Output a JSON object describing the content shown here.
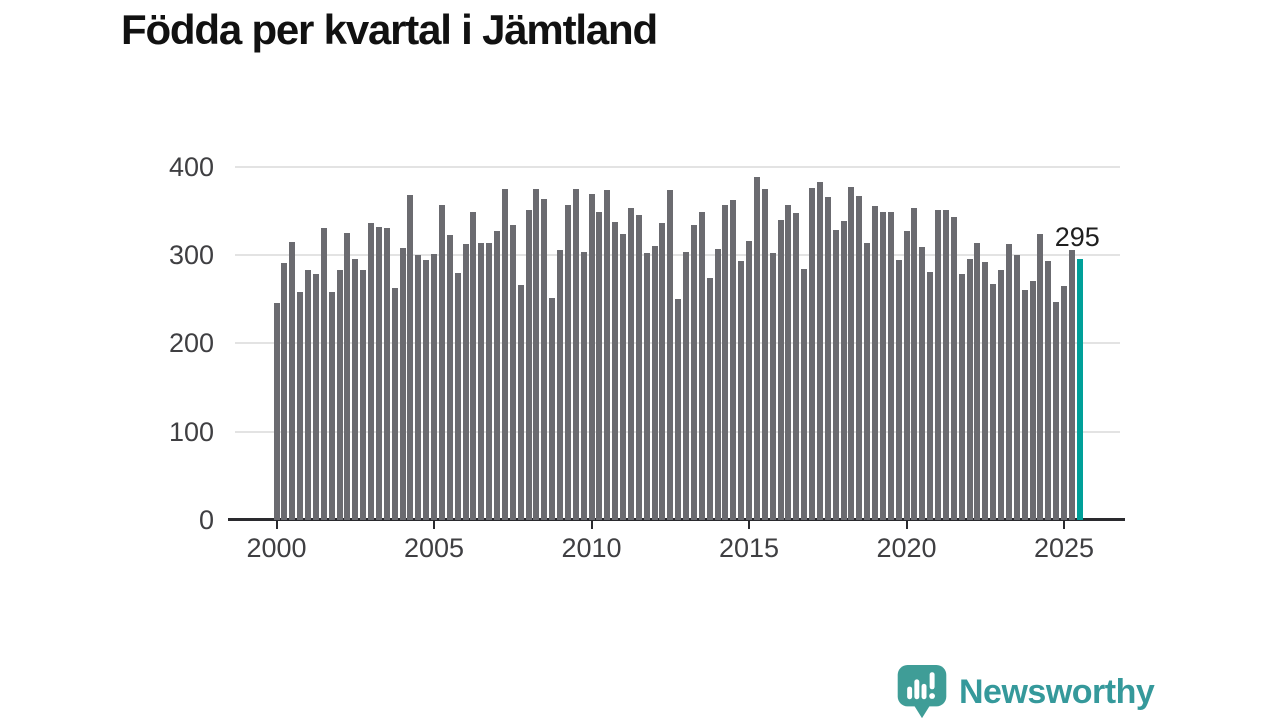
{
  "header": {
    "title": "Födda per kvartal i Jämtland"
  },
  "chart_data": {
    "type": "bar",
    "title": "Födda per kvartal i Jämtland",
    "xlabel": "",
    "ylabel": "",
    "x_start": "2000 Q1",
    "x_end": "2025 Q3",
    "frequency": "quarterly",
    "values": [
      245,
      291,
      315,
      258,
      283,
      278,
      330,
      258,
      283,
      325,
      295,
      283,
      336,
      332,
      330,
      263,
      308,
      368,
      300,
      294,
      301,
      356,
      323,
      279,
      312,
      349,
      314,
      314,
      327,
      375,
      334,
      266,
      351,
      375,
      363,
      251,
      305,
      357,
      374,
      303,
      369,
      348,
      373,
      337,
      324,
      353,
      345,
      302,
      310,
      336,
      373,
      250,
      303,
      334,
      349,
      274,
      307,
      356,
      362,
      293,
      316,
      388,
      375,
      302,
      339,
      357,
      347,
      284,
      376,
      382,
      366,
      328,
      338,
      377,
      367,
      314,
      355,
      348,
      348,
      294,
      327,
      353,
      309,
      281,
      351,
      351,
      343,
      278,
      295,
      313,
      292,
      267,
      283,
      312,
      300,
      260,
      270,
      324,
      293,
      247,
      265,
      306,
      295
    ],
    "highlight": {
      "index": 102,
      "quarter": "2025 Q3",
      "value": 295,
      "label": "295"
    },
    "x_tick_labels": [
      "2000",
      "2005",
      "2010",
      "2015",
      "2020",
      "2025"
    ],
    "y_tick_labels": [
      "0",
      "100",
      "200",
      "300",
      "400"
    ],
    "ylim": [
      0,
      400
    ],
    "grid": "horizontal",
    "legend": "none",
    "colors": {
      "bar": "#6b6b70",
      "highlight": "#00a099",
      "grid": "#e3e3e3",
      "axis": "#2a2a2e",
      "tick_text": "#3f3f42",
      "title_text": "#111111",
      "value_label_text": "#1f1f1f"
    }
  },
  "footer": {
    "brand": "Newsworthy",
    "brand_color": "#35999b",
    "icon": "newsworthy-logo-icon",
    "icon_color": "#3f9d97"
  }
}
